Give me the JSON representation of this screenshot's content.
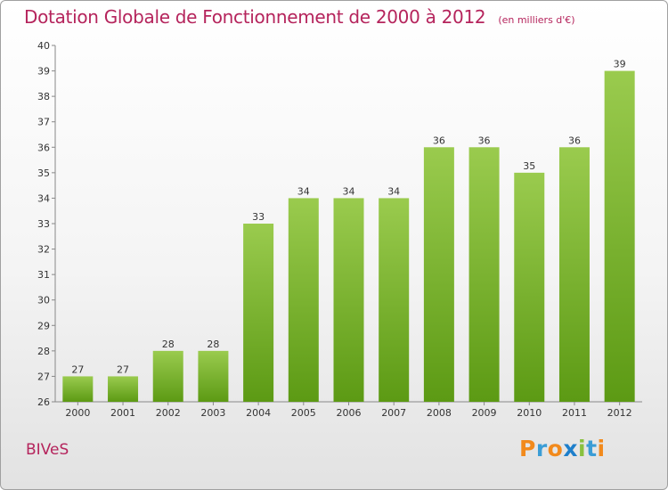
{
  "header": {
    "title": "Dotation Globale de Fonctionnement de 2000 à 2012",
    "unit": "(en milliers d'€)"
  },
  "footer": {
    "town": "BIVeS",
    "logo": [
      "P",
      "r",
      "o",
      "x",
      "i",
      "t",
      "i"
    ],
    "logo_colors": [
      "#f28a1c",
      "#3b9dd6",
      "#f28a1c",
      "#1e7fcb",
      "#89c13f",
      "#3b9dd6",
      "#f28a1c"
    ]
  },
  "colors": {
    "bar_top": "#9acb4e",
    "bar_bottom": "#5c9a14",
    "title": "#b5245c"
  },
  "chart_data": {
    "type": "bar",
    "title": "Dotation Globale de Fonctionnement de 2000 à 2012",
    "subtitle": "(en milliers d'€)",
    "xlabel": "",
    "ylabel": "",
    "categories": [
      "2000",
      "2001",
      "2002",
      "2003",
      "2004",
      "2005",
      "2006",
      "2007",
      "2008",
      "2009",
      "2010",
      "2011",
      "2012"
    ],
    "values": [
      27,
      27,
      28,
      28,
      33,
      34,
      34,
      34,
      36,
      36,
      35,
      36,
      39
    ],
    "ylim": [
      26,
      40
    ],
    "yticks": [
      26,
      27,
      28,
      29,
      30,
      31,
      32,
      33,
      34,
      35,
      36,
      37,
      38,
      39,
      40
    ],
    "grid": false
  }
}
